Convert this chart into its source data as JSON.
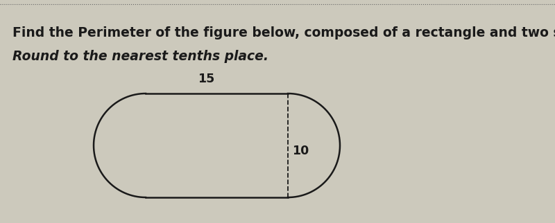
{
  "title_line1": "Find the Perimeter of the figure below, composed of a rectangle and two semicircles.",
  "title_line2": "Round to the nearest tenths place.",
  "title_fontsize": 13.5,
  "subtitle_fontsize": 13.5,
  "bg_color": "#ccc9bc",
  "text_color": "#1a1a1a",
  "fig_width": 8.0,
  "fig_height": 3.22,
  "dpi": 100,
  "label_15": "15",
  "label_10": "10",
  "line_color": "#1a1a1a",
  "dashed_color": "#1a1a1a",
  "border_dot_color": "#666666",
  "lw": 1.8
}
